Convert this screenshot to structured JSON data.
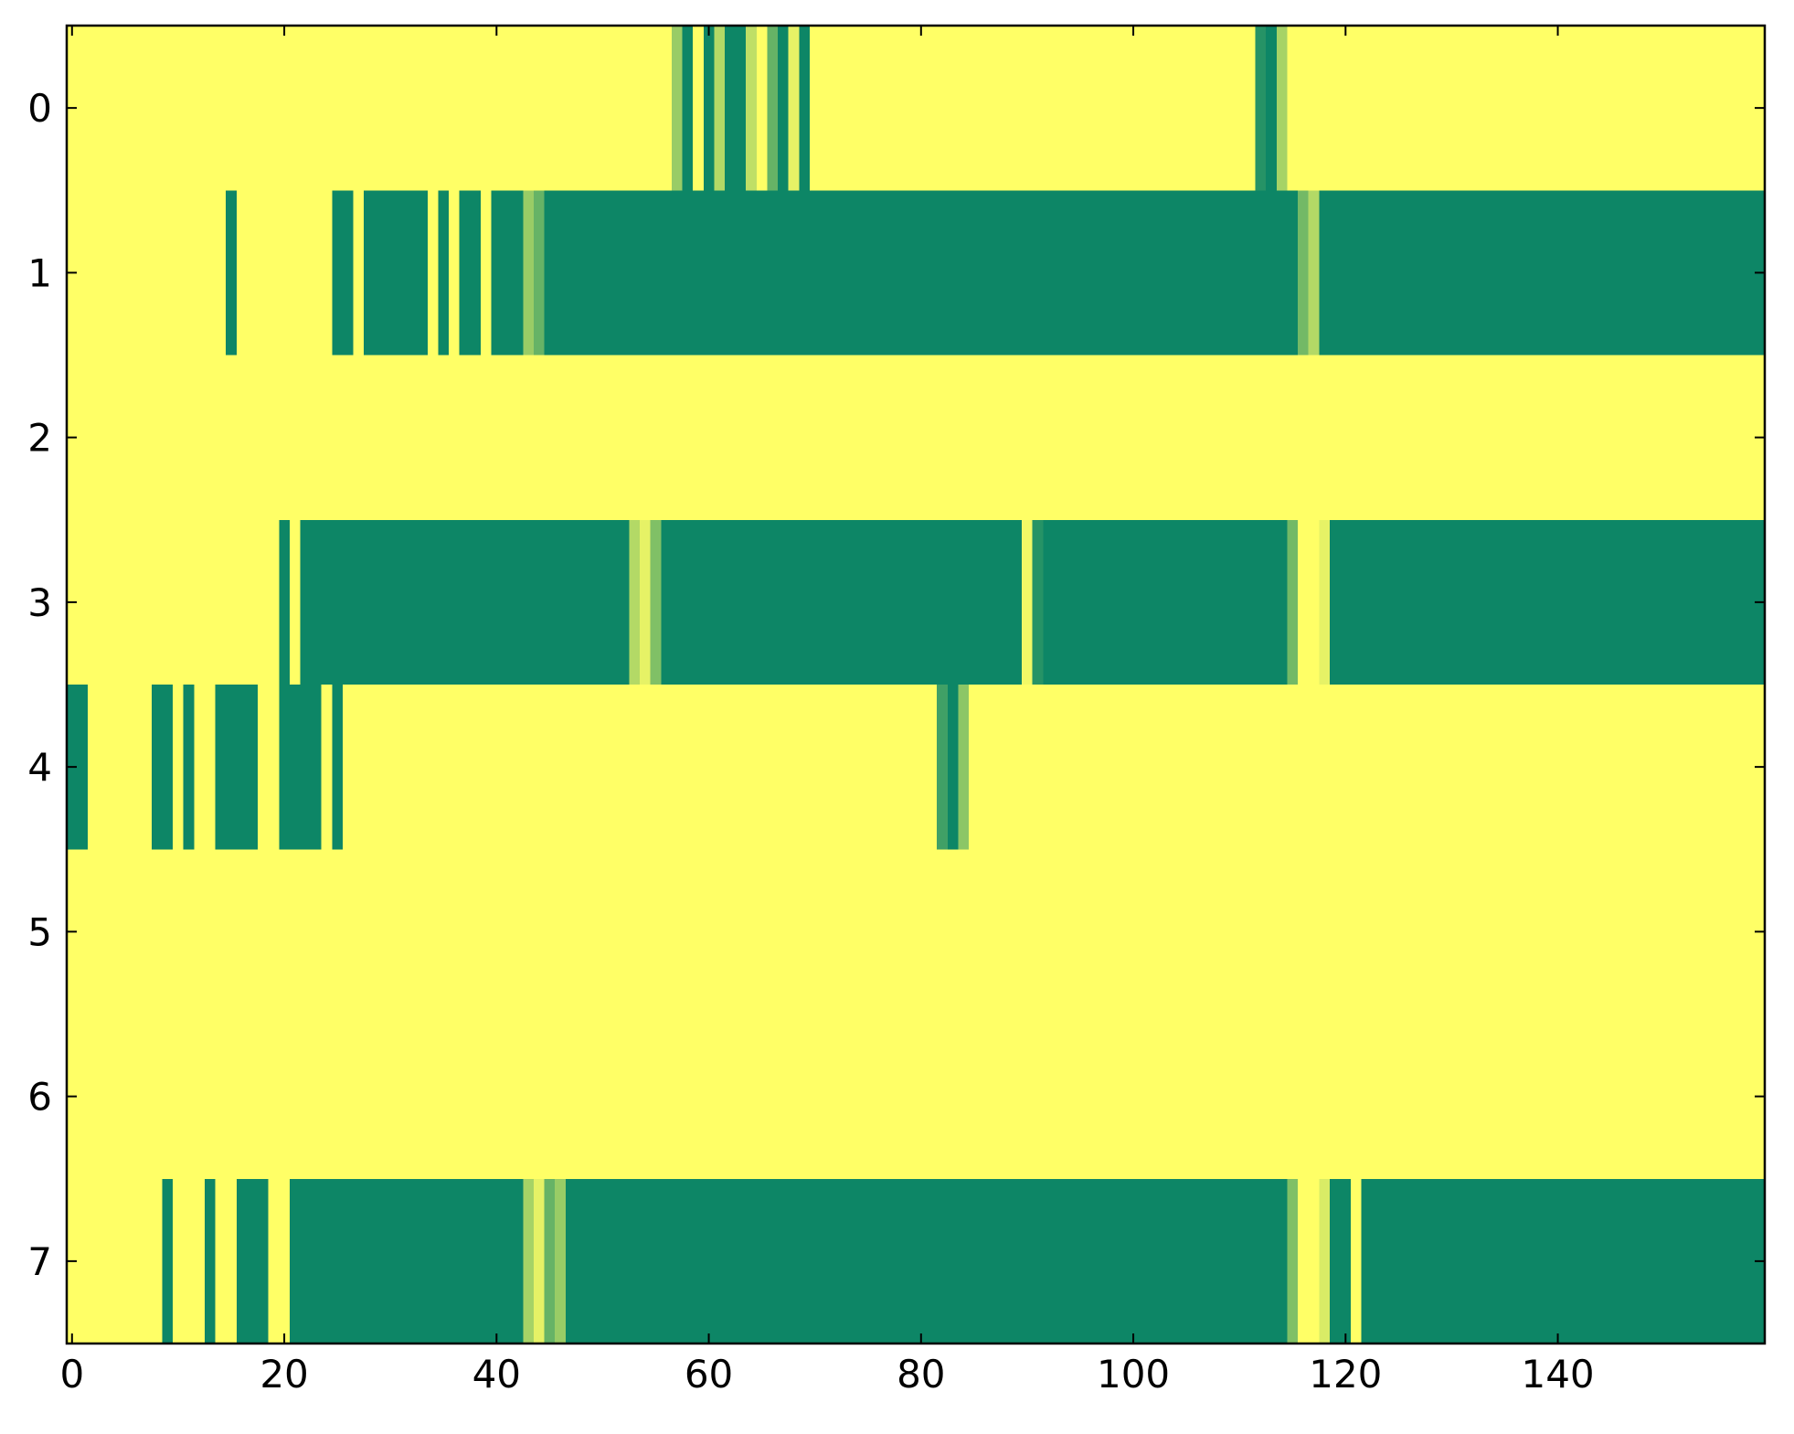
{
  "chart_data": {
    "type": "heatmap",
    "title": "",
    "xlabel": "",
    "ylabel": "",
    "n_cols": 160,
    "xlim": [
      -0.5,
      159.5
    ],
    "ylim": [
      7.5,
      -0.5
    ],
    "x_ticks": [
      0,
      20,
      40,
      60,
      80,
      100,
      120,
      140
    ],
    "x_tick_labels": [
      "0",
      "20",
      "40",
      "60",
      "80",
      "100",
      "120",
      "140"
    ],
    "y_ticks": [
      0,
      1,
      2,
      3,
      4,
      5,
      6,
      7
    ],
    "y_tick_labels": [
      "0",
      "1",
      "2",
      "3",
      "4",
      "5",
      "6",
      "7"
    ],
    "colormap": "summer",
    "colormap_range": [
      0,
      1
    ],
    "colormap_colors": [
      "#008066",
      "#ffff66"
    ],
    "background_value": 1,
    "rows": [
      {
        "row": 0,
        "segments": [
          [
            57,
            57,
            0.6
          ],
          [
            58,
            58,
            0.05
          ],
          [
            59,
            59,
            1
          ],
          [
            60,
            60,
            0.05
          ],
          [
            61,
            61,
            0.7
          ],
          [
            62,
            63,
            0.05
          ],
          [
            64,
            64,
            0.75
          ],
          [
            65,
            65,
            1
          ],
          [
            66,
            66,
            0.4
          ],
          [
            67,
            67,
            0.05
          ],
          [
            68,
            68,
            0.9
          ],
          [
            69,
            69,
            0.05
          ],
          [
            112,
            112,
            0.15
          ],
          [
            113,
            113,
            0.05
          ],
          [
            114,
            114,
            0.65
          ]
        ]
      },
      {
        "row": 1,
        "segments": [
          [
            15,
            15,
            0.05
          ],
          [
            25,
            26,
            0.05
          ],
          [
            28,
            33,
            0.05
          ],
          [
            35,
            35,
            0.05
          ],
          [
            37,
            38,
            0.05
          ],
          [
            40,
            42,
            0.05
          ],
          [
            43,
            43,
            0.6
          ],
          [
            44,
            44,
            0.4
          ],
          [
            45,
            115,
            0.05
          ],
          [
            116,
            116,
            0.45
          ],
          [
            117,
            117,
            0.7
          ],
          [
            118,
            159,
            0.05
          ]
        ]
      },
      {
        "row": 2,
        "segments": []
      },
      {
        "row": 3,
        "segments": [
          [
            20,
            20,
            0.05
          ],
          [
            22,
            52,
            0.05
          ],
          [
            53,
            53,
            0.7
          ],
          [
            54,
            54,
            0.9
          ],
          [
            55,
            55,
            0.5
          ],
          [
            56,
            89,
            0.05
          ],
          [
            90,
            90,
            0.95
          ],
          [
            91,
            91,
            0.15
          ],
          [
            92,
            114,
            0.05
          ],
          [
            115,
            115,
            0.45
          ],
          [
            116,
            117,
            1
          ],
          [
            118,
            118,
            0.9
          ],
          [
            119,
            159,
            0.05
          ]
        ]
      },
      {
        "row": 4,
        "segments": [
          [
            -1,
            1,
            0.05
          ],
          [
            8,
            9,
            0.05
          ],
          [
            11,
            11,
            0.05
          ],
          [
            14,
            17,
            0.05
          ],
          [
            20,
            23,
            0.05
          ],
          [
            25,
            25,
            0.05
          ],
          [
            82,
            82,
            0.25
          ],
          [
            83,
            83,
            0.05
          ],
          [
            84,
            84,
            0.55
          ]
        ]
      },
      {
        "row": 5,
        "segments": []
      },
      {
        "row": 6,
        "segments": []
      },
      {
        "row": 7,
        "segments": [
          [
            9,
            9,
            0.05
          ],
          [
            13,
            13,
            0.05
          ],
          [
            16,
            18,
            0.05
          ],
          [
            21,
            42,
            0.05
          ],
          [
            43,
            43,
            0.65
          ],
          [
            44,
            44,
            0.9
          ],
          [
            45,
            45,
            0.4
          ],
          [
            46,
            46,
            0.6
          ],
          [
            47,
            47,
            0.05
          ],
          [
            48,
            114,
            0.05
          ],
          [
            115,
            115,
            0.5
          ],
          [
            116,
            117,
            1
          ],
          [
            118,
            118,
            0.85
          ],
          [
            119,
            120,
            0.05
          ],
          [
            122,
            159,
            0.05
          ]
        ]
      }
    ]
  }
}
